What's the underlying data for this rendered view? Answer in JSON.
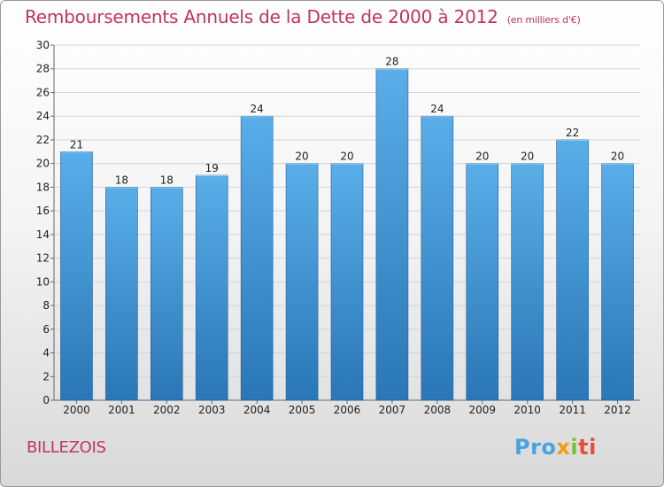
{
  "title": "Remboursements Annuels de la Dette de 2000 à 2012",
  "unit": "(en milliers d'€)",
  "commune": "BILLEZOIS",
  "logo": {
    "p1": "Pro",
    "p2": "x",
    "p3": "i",
    "p4": "ti"
  },
  "colors": {
    "title": "#c0355a",
    "bar_top": "#5aaee8",
    "bar_bottom": "#2a76b6"
  },
  "chart_data": {
    "type": "bar",
    "title": "Remboursements Annuels de la Dette de 2000 à 2012",
    "categories": [
      "2000",
      "2001",
      "2002",
      "2003",
      "2004",
      "2005",
      "2006",
      "2007",
      "2008",
      "2009",
      "2010",
      "2011",
      "2012"
    ],
    "values": [
      21,
      18,
      18,
      19,
      24,
      20,
      20,
      28,
      24,
      20,
      20,
      22,
      20
    ],
    "ylim": [
      0,
      30
    ],
    "ytick_step": 2,
    "grid": true,
    "xlabel": "",
    "ylabel": ""
  }
}
